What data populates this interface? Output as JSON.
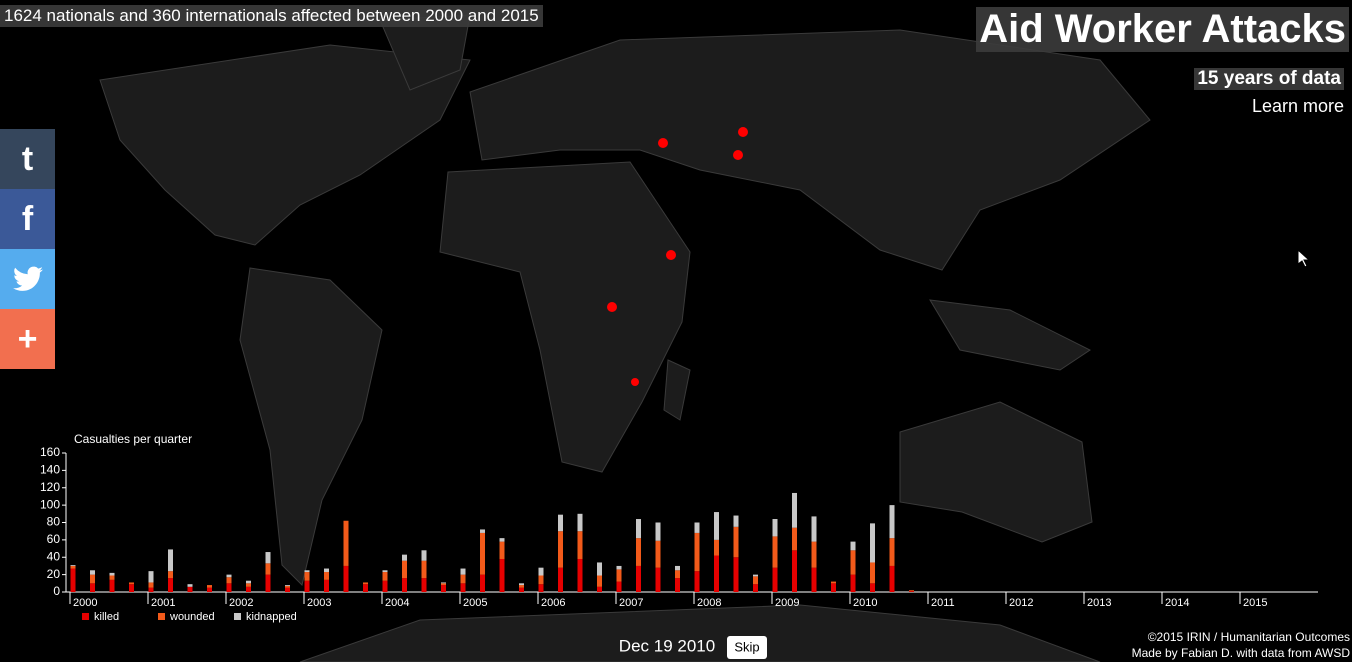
{
  "header": {
    "summary": "1624 nationals and 360 internationals affected between 2000 and 2015",
    "title": "Aid Worker Attacks",
    "subtitle": "15 years of data",
    "link": "Learn more"
  },
  "social": [
    {
      "label": "t"
    },
    {
      "label": "f"
    },
    {
      "label": "+"
    }
  ],
  "chart_data": {
    "type": "stacked-bar",
    "title": "Casualties per quarter",
    "categories": [
      "2000",
      null,
      null,
      null,
      "2001",
      null,
      null,
      null,
      "2002",
      null,
      null,
      null,
      "2003",
      null,
      null,
      null,
      "2004",
      null,
      null,
      null,
      "2005",
      null,
      null,
      null,
      "2006",
      null,
      null,
      null,
      "2007",
      null,
      null,
      null,
      "2008",
      null,
      null,
      null,
      "2009",
      null,
      null,
      null,
      "2010",
      null,
      null,
      null,
      "2011",
      null,
      null,
      null,
      "2012",
      null,
      null,
      null,
      "2013",
      null,
      null,
      null,
      "2014",
      null,
      null,
      null,
      "2015",
      null,
      null,
      null
    ],
    "series": [
      {
        "name": "killed",
        "color": "#e60000",
        "values": [
          27,
          10,
          14,
          9,
          5,
          16,
          6,
          5,
          10,
          6,
          20,
          5,
          13,
          14,
          30,
          9,
          13,
          16,
          16,
          8,
          10,
          20,
          38,
          5,
          9,
          28,
          38,
          6,
          12,
          30,
          28,
          16,
          24,
          42,
          40,
          9,
          28,
          48,
          28,
          10,
          20,
          10,
          30,
          1,
          null,
          null,
          null,
          null,
          null,
          null,
          null,
          null,
          null,
          null,
          null,
          null,
          null,
          null,
          null,
          null,
          null,
          null,
          null,
          null
        ]
      },
      {
        "name": "wounded",
        "color": "#f25a1a",
        "values": [
          3,
          10,
          5,
          2,
          6,
          8,
          0,
          3,
          7,
          4,
          13,
          2,
          10,
          9,
          52,
          2,
          10,
          20,
          20,
          2,
          10,
          48,
          20,
          3,
          10,
          42,
          32,
          13,
          14,
          32,
          31,
          9,
          44,
          18,
          35,
          9,
          36,
          26,
          30,
          2,
          28,
          24,
          32,
          1,
          null,
          null,
          null,
          null,
          null,
          null,
          null,
          null,
          null,
          null,
          null,
          null,
          null,
          null,
          null,
          null,
          null,
          null,
          null,
          null
        ]
      },
      {
        "name": "kidnapped",
        "color": "#c8c8c8",
        "values": [
          1,
          5,
          3,
          0,
          13,
          25,
          3,
          0,
          3,
          3,
          13,
          1,
          2,
          4,
          0,
          0,
          2,
          7,
          12,
          1,
          7,
          4,
          4,
          2,
          9,
          19,
          20,
          15,
          4,
          22,
          21,
          5,
          12,
          32,
          13,
          2,
          20,
          40,
          29,
          0,
          10,
          45,
          38,
          0,
          null,
          null,
          null,
          null,
          null,
          null,
          null,
          null,
          null,
          null,
          null,
          null,
          null,
          null,
          null,
          null,
          null,
          null,
          null,
          null
        ]
      }
    ],
    "ylim": [
      0,
      160
    ],
    "yticks": [
      0,
      20,
      40,
      60,
      80,
      100,
      120,
      140,
      160
    ]
  },
  "player": {
    "date": "Dec 19 2010",
    "button": "Skip"
  },
  "footer": {
    "copyright": "©2015",
    "irin": "IRIN",
    "sep": "/",
    "ho": "Humanitarian Outcomes",
    "made": "Made by",
    "author": "Fabian D.",
    "with": "with data from",
    "awsd": "AWSD"
  }
}
